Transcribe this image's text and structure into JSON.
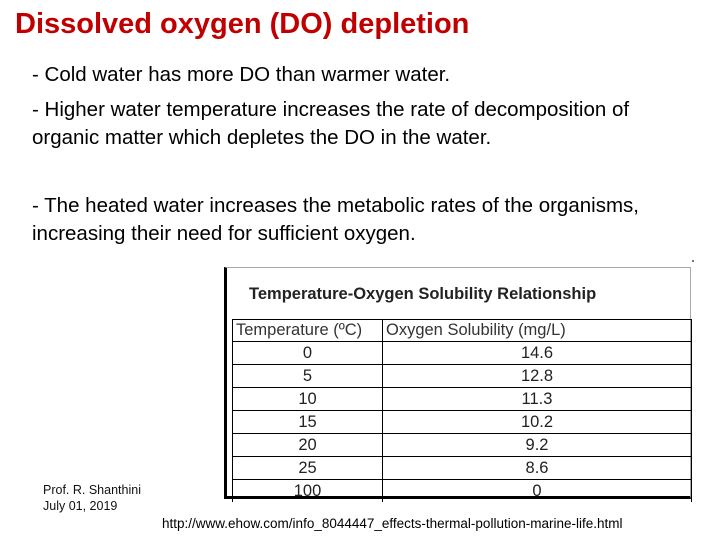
{
  "slide": {
    "title": "Dissolved oxygen (DO) depletion",
    "bullets": [
      "- Cold water has more DO than warmer water.",
      "- Higher water temperature increases the rate of decomposition of organic matter which depletes the DO in the water.",
      "- The heated water increases the metabolic rates of the organisms, increasing their need for sufficient oxygen."
    ]
  },
  "table": {
    "title": "Temperature-Oxygen Solubility Relationship",
    "headers": [
      "Temperature (ºC)",
      "Oxygen Solubility (mg/L)"
    ],
    "rows": [
      [
        "0",
        "14.6"
      ],
      [
        "5",
        "12.8"
      ],
      [
        "10",
        "11.3"
      ],
      [
        "15",
        "10.2"
      ],
      [
        "20",
        "9.2"
      ],
      [
        "25",
        "8.6"
      ],
      [
        "100",
        "0"
      ]
    ]
  },
  "footer": {
    "author": "Prof. R. Shanthini",
    "date": "July 01, 2019",
    "source": "http://www.ehow.com/info_8044447_effects-thermal-pollution-marine-life.html"
  }
}
